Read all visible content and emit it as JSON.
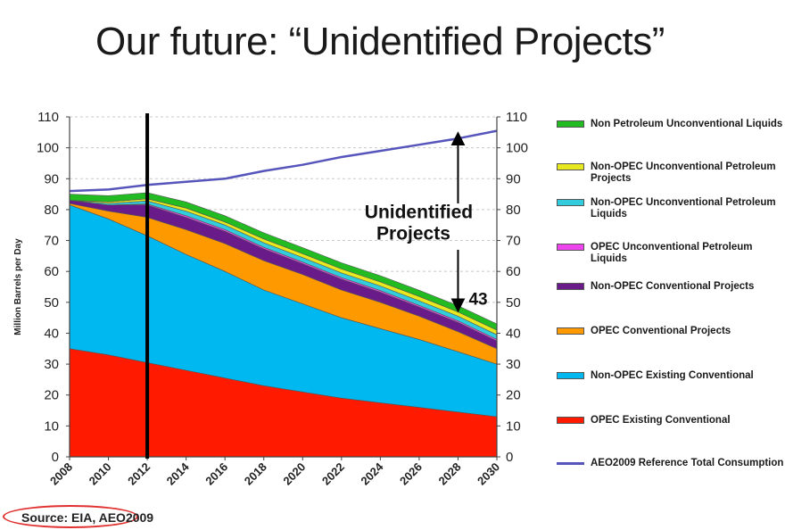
{
  "title": "Our future: “Unidentified Projects”",
  "source": "Source: EIA, AEO2009",
  "colors": {
    "grid": "#c8c8c8",
    "axis": "#444444",
    "marker": "#000000"
  },
  "chart_data": {
    "type": "area",
    "stacked": true,
    "ylabel": "Million Barrels per Day",
    "ylim": [
      0,
      110
    ],
    "yticks": [
      "0",
      "10",
      "20",
      "30",
      "40",
      "50",
      "60",
      "70",
      "80",
      "90",
      "100",
      "110"
    ],
    "x": [
      2008,
      2010,
      2012,
      2014,
      2016,
      2018,
      2020,
      2022,
      2024,
      2026,
      2028,
      2030
    ],
    "xticks": [
      "2008",
      "2010",
      "2012",
      "2014",
      "2016",
      "2018",
      "2020",
      "2022",
      "2024",
      "2026",
      "2028",
      "2030"
    ],
    "grid": true,
    "legend_position": "right",
    "vertical_marker_x": 2012,
    "series": [
      {
        "name": "OPEC Existing Conventional",
        "color": "#ff1a00",
        "values": [
          35,
          33,
          30.5,
          28,
          25.5,
          23,
          21,
          19,
          17.5,
          16,
          14.5,
          13
        ]
      },
      {
        "name": "Non-OPEC Existing Conventional",
        "color": "#00b8f0",
        "values": [
          46.5,
          44,
          41,
          37.5,
          34.5,
          31,
          28.5,
          26,
          24,
          22,
          19.5,
          17
        ]
      },
      {
        "name": "OPEC Conventional Projects",
        "color": "#ff9900",
        "values": [
          0.5,
          2.5,
          6,
          8,
          9,
          9.5,
          9.5,
          9,
          8.5,
          7.5,
          6.5,
          5
        ]
      },
      {
        "name": "Non-OPEC Conventional Projects",
        "color": "#6a1b8a",
        "values": [
          1,
          2,
          4,
          4,
          4,
          3.8,
          3.5,
          3.5,
          3.3,
          3,
          3,
          2.5
        ]
      },
      {
        "name": "OPEC Unconventional Petroleum Liquids",
        "color": "#ee44ee",
        "values": [
          0,
          0,
          0.3,
          0.5,
          0.5,
          0.5,
          0.5,
          0.5,
          0.5,
          0.5,
          0.5,
          0.5
        ]
      },
      {
        "name": "Non-OPEC Unconventional Petroleum Liquids",
        "color": "#33ccdd",
        "values": [
          0,
          0.5,
          1,
          1.5,
          1.5,
          1.5,
          1.5,
          1.5,
          1.5,
          1.5,
          1.5,
          1.5
        ]
      },
      {
        "name": "Non-OPEC Unconventional Petroleum Projects",
        "color": "#e8e820",
        "values": [
          0,
          0.5,
          0.7,
          1,
          1,
          1.2,
          1.2,
          1.3,
          1.3,
          1.4,
          1.4,
          1.5
        ]
      },
      {
        "name": "Non Petroleum Unconventional Liquids",
        "color": "#22bb22",
        "values": [
          2,
          2,
          2,
          2,
          2,
          2,
          2,
          2,
          2,
          2,
          2,
          2
        ]
      }
    ],
    "line_series": {
      "name": "AEO2009 Reference Total Consumption",
      "color": "#5555bb",
      "values": [
        86,
        86.5,
        88,
        89,
        90,
        92.5,
        94.5,
        97,
        99,
        101,
        103,
        105.5
      ]
    },
    "annotations": {
      "gap_label_line1": "Unidentified",
      "gap_label_line2": "Projects",
      "gap_x": 2028,
      "gap_top": 103,
      "gap_bottom": 49,
      "gap_value_label": "43",
      "gap_value_y": 51
    }
  }
}
